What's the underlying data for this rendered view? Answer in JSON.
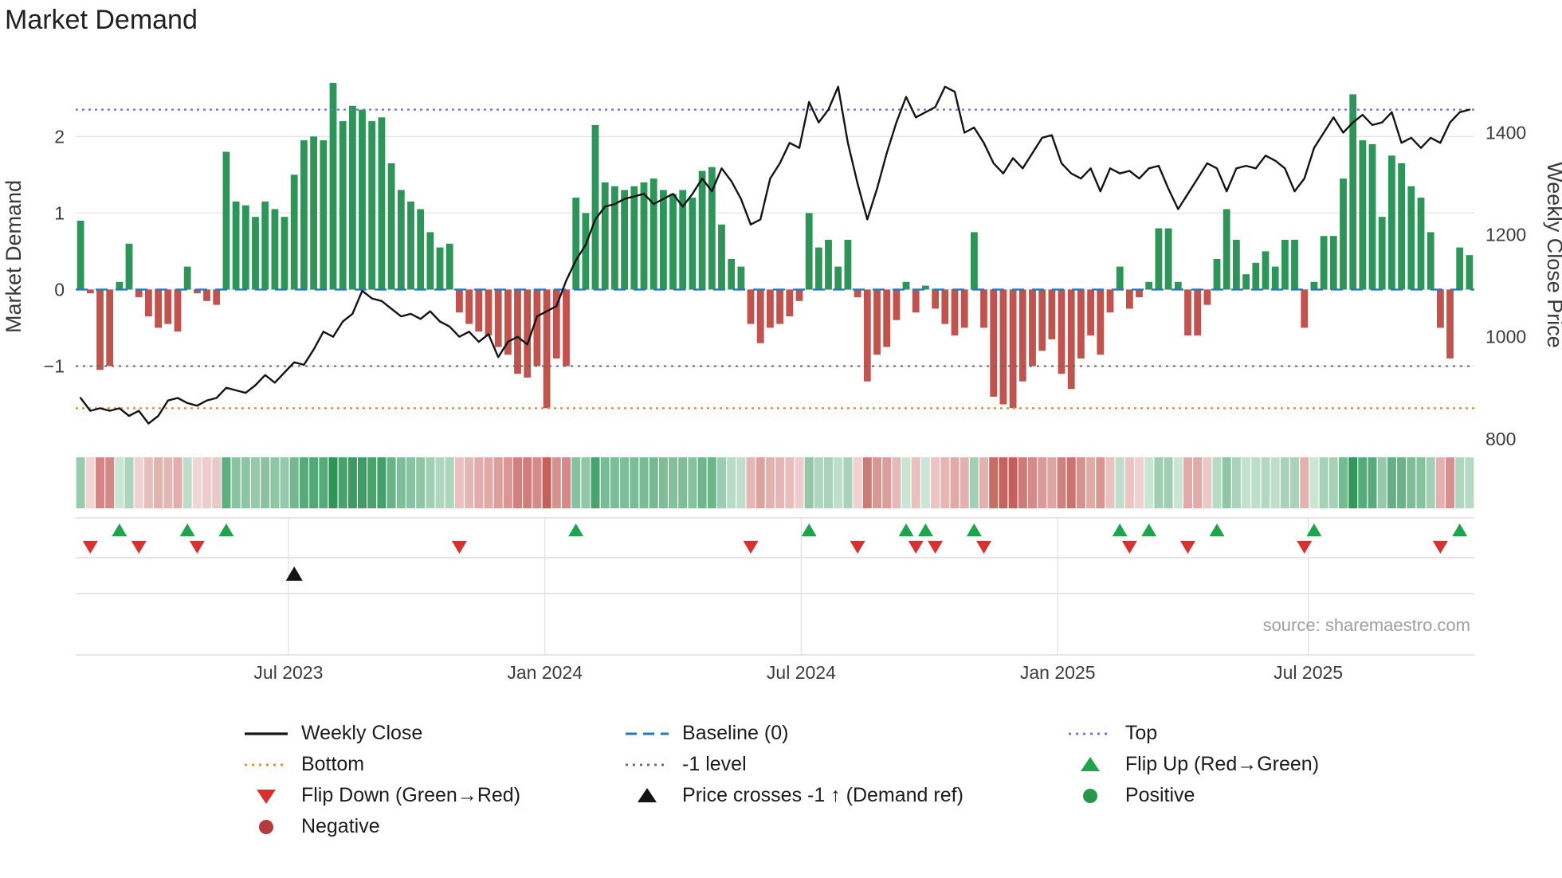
{
  "title": "Market Demand",
  "source": "source: sharemaestro.com",
  "axes": {
    "left_label": "Market Demand",
    "right_label": "Weekly Close Price",
    "left_ticks": [
      {
        "v": 2,
        "label": "2"
      },
      {
        "v": 1,
        "label": "1"
      },
      {
        "v": 0,
        "label": "0"
      },
      {
        "v": -1,
        "label": "−1"
      }
    ],
    "right_ticks": [
      {
        "v": 1400,
        "label": "1400"
      },
      {
        "v": 1200,
        "label": "1200"
      },
      {
        "v": 1000,
        "label": "1000"
      },
      {
        "v": 800,
        "label": "800"
      }
    ],
    "x_ticks": [
      {
        "label": "Jul 2023",
        "week": 21.4
      },
      {
        "label": "Jan 2024",
        "week": 47.8
      },
      {
        "label": "Jul 2024",
        "week": 74.2
      },
      {
        "label": "Jan 2025",
        "week": 100.6
      },
      {
        "label": "Jul 2025",
        "week": 126.4
      }
    ]
  },
  "colors": {
    "positive_bar": "#2e9558",
    "negative_bar": "#c0534e",
    "price_line": "#141414",
    "baseline": "#2579b5",
    "top": "#6e6ed6",
    "bottom": "#e78b1e",
    "minus1": "#666666",
    "flip_up": "#1fa34c",
    "flip_down": "#d93030",
    "price_cross": "#141414",
    "positive_marker": "#27964a",
    "negative_marker": "#b23b3b",
    "grid": "#e4e4e4",
    "panel_line": "#cccccc",
    "month_grid": "#e0e0e0"
  },
  "legend": {
    "columns": [
      [
        {
          "label": "Weekly Close",
          "marker": "line",
          "color_key": "price_line"
        },
        {
          "label": "Bottom",
          "marker": "dotted",
          "color_key": "bottom"
        },
        {
          "label": "Flip Down (Green→Red)",
          "marker": "tri_down",
          "color_key": "flip_down"
        },
        {
          "label": "Negative",
          "marker": "circle",
          "color_key": "negative_marker"
        }
      ],
      [
        {
          "label": "Baseline (0)",
          "marker": "dashed",
          "color_key": "baseline"
        },
        {
          "label": "-1 level",
          "marker": "dotted",
          "color_key": "minus1"
        },
        {
          "label": "Price crosses -1 ↑ (Demand ref)",
          "marker": "tri_up",
          "color_key": "price_cross"
        }
      ],
      [
        {
          "label": "Top",
          "marker": "dotted",
          "color_key": "top"
        },
        {
          "label": "Flip Up (Red→Green)",
          "marker": "tri_up",
          "color_key": "flip_up"
        },
        {
          "label": "Positive",
          "marker": "circle",
          "color_key": "positive_marker"
        }
      ]
    ]
  },
  "chart_data": {
    "type": "bar+line+heatmap",
    "x_unit": "week",
    "left_ylim": [
      -2.15,
      2.95
    ],
    "right_ylim": [
      770,
      1535
    ],
    "levels": {
      "baseline": 0,
      "top": 2.35,
      "minus1": -1,
      "bottom": -1.55
    },
    "demand": [
      0.9,
      -0.05,
      -1.05,
      -1.0,
      0.1,
      0.6,
      -0.1,
      -0.35,
      -0.5,
      -0.45,
      -0.55,
      0.3,
      -0.05,
      -0.15,
      -0.2,
      1.8,
      1.15,
      1.1,
      0.95,
      1.15,
      1.05,
      0.95,
      1.5,
      1.95,
      2.0,
      1.95,
      2.7,
      2.2,
      2.4,
      2.35,
      2.2,
      2.25,
      1.65,
      1.3,
      1.15,
      1.05,
      0.75,
      0.55,
      0.6,
      -0.3,
      -0.45,
      -0.55,
      -0.6,
      -0.75,
      -0.85,
      -1.1,
      -1.15,
      -1.0,
      -1.55,
      -0.9,
      -1.0,
      1.2,
      1.0,
      2.15,
      1.4,
      1.35,
      1.3,
      1.35,
      1.4,
      1.45,
      1.3,
      1.25,
      1.3,
      1.2,
      1.55,
      1.6,
      0.85,
      0.4,
      0.3,
      -0.45,
      -0.7,
      -0.5,
      -0.45,
      -0.35,
      -0.15,
      1.0,
      0.55,
      0.65,
      0.3,
      0.65,
      -0.1,
      -1.2,
      -0.85,
      -0.75,
      -0.4,
      0.1,
      -0.3,
      0.05,
      -0.25,
      -0.45,
      -0.6,
      -0.5,
      0.75,
      -0.5,
      -1.4,
      -1.5,
      -1.55,
      -1.2,
      -1.0,
      -0.8,
      -0.65,
      -1.1,
      -1.3,
      -0.9,
      -0.6,
      -0.85,
      -0.3,
      0.3,
      -0.25,
      -0.1,
      0.1,
      0.8,
      0.8,
      0.1,
      -0.6,
      -0.6,
      -0.2,
      0.4,
      1.05,
      0.65,
      0.2,
      0.35,
      0.5,
      0.3,
      0.65,
      0.65,
      -0.5,
      0.1,
      0.7,
      0.7,
      1.45,
      2.55,
      1.95,
      1.9,
      0.95,
      1.75,
      1.65,
      1.35,
      1.2,
      0.75,
      -0.5,
      -0.9,
      0.55,
      0.45
    ],
    "price": [
      880,
      855,
      860,
      855,
      860,
      845,
      855,
      830,
      845,
      875,
      880,
      870,
      865,
      875,
      880,
      900,
      895,
      890,
      905,
      925,
      910,
      930,
      950,
      945,
      975,
      1010,
      1000,
      1030,
      1045,
      1090,
      1075,
      1070,
      1055,
      1040,
      1045,
      1035,
      1050,
      1030,
      1020,
      1000,
      1010,
      990,
      1005,
      960,
      990,
      1000,
      985,
      1040,
      1050,
      1060,
      1110,
      1150,
      1180,
      1230,
      1255,
      1260,
      1270,
      1275,
      1280,
      1260,
      1270,
      1280,
      1255,
      1280,
      1310,
      1285,
      1330,
      1305,
      1270,
      1220,
      1230,
      1310,
      1340,
      1380,
      1370,
      1460,
      1420,
      1445,
      1490,
      1380,
      1300,
      1230,
      1290,
      1360,
      1420,
      1470,
      1430,
      1440,
      1450,
      1490,
      1480,
      1400,
      1410,
      1380,
      1340,
      1320,
      1350,
      1330,
      1360,
      1390,
      1395,
      1340,
      1320,
      1310,
      1330,
      1285,
      1330,
      1320,
      1325,
      1310,
      1330,
      1335,
      1290,
      1250,
      1280,
      1310,
      1340,
      1330,
      1285,
      1330,
      1335,
      1330,
      1355,
      1345,
      1330,
      1285,
      1310,
      1370,
      1400,
      1430,
      1400,
      1420,
      1435,
      1415,
      1420,
      1440,
      1380,
      1390,
      1370,
      1390,
      1380,
      1420,
      1440,
      1445
    ],
    "flip_up_weeks": [
      4,
      11,
      15,
      51,
      75,
      85,
      87,
      92,
      107,
      110,
      117,
      127,
      142
    ],
    "flip_down_weeks": [
      1,
      6,
      12,
      39,
      69,
      80,
      86,
      88,
      93,
      108,
      114,
      126,
      140
    ],
    "price_cross_weeks": [
      22
    ]
  }
}
